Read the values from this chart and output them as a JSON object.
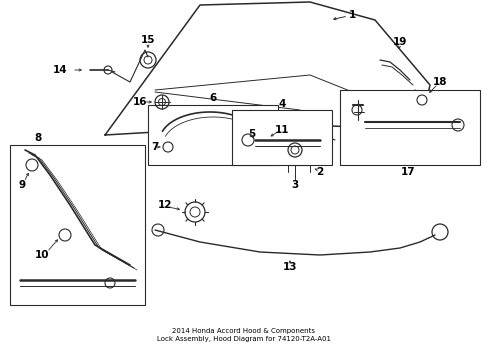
{
  "title": "2014 Honda Accord Hood & Components\nLock Assembly, Hood Diagram for 74120-T2A-A01",
  "bg": "#ffffff",
  "lc": "#2a2a2a",
  "tc": "#000000"
}
